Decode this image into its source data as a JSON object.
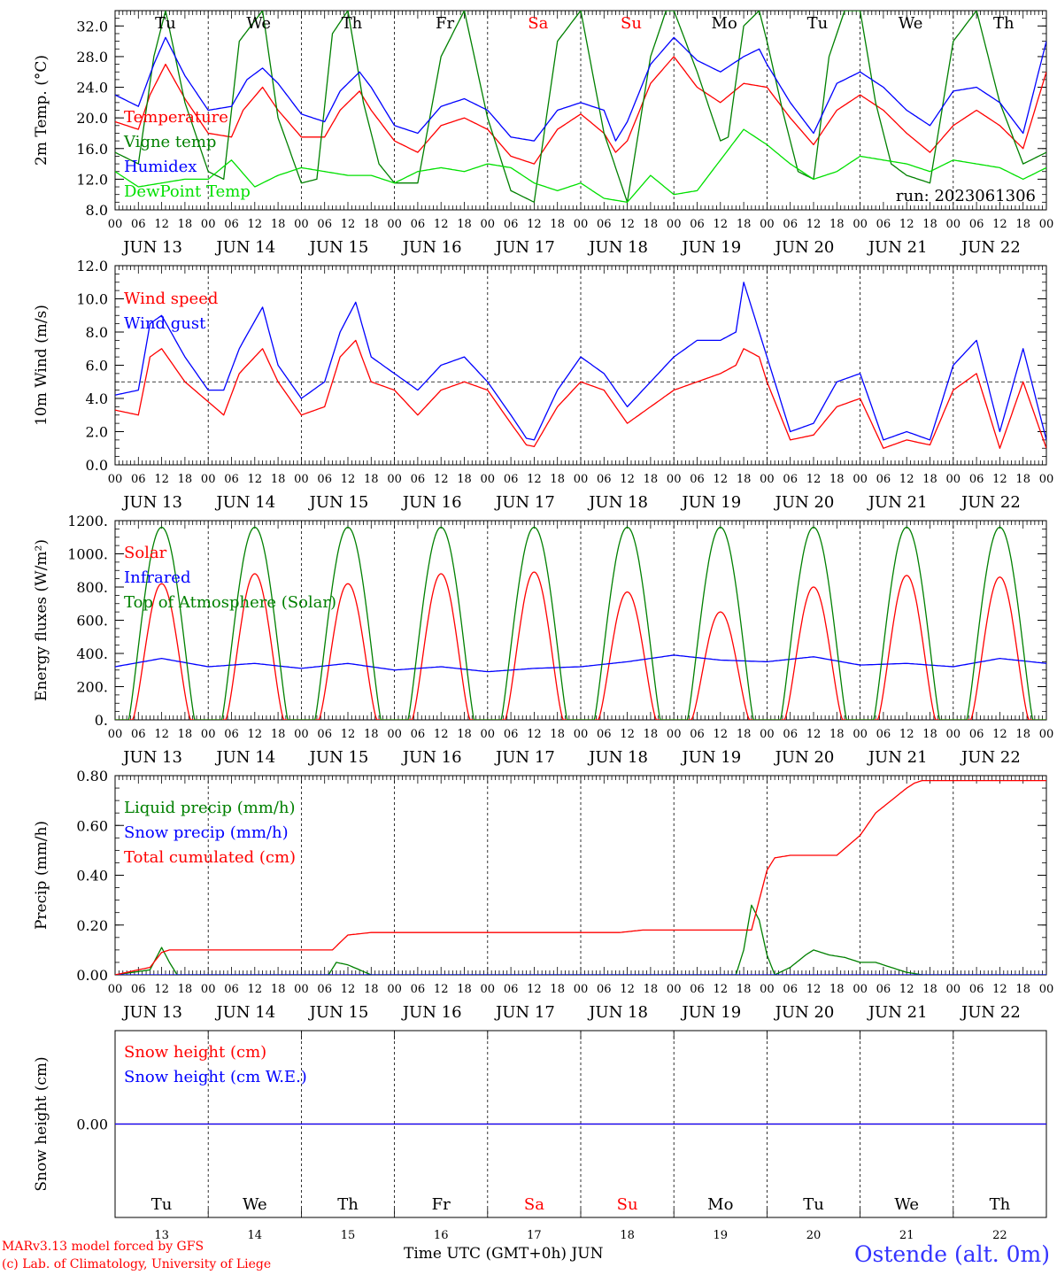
{
  "chart_data": [
    {
      "type": "line",
      "ylabel": "2m Temp. (°C)",
      "ylim": [
        8,
        34
      ],
      "yticks": [
        8.0,
        12.0,
        16.0,
        20.0,
        24.0,
        28.0,
        32.0
      ],
      "ytick_labels": [
        "8.0",
        "12.0",
        "16.0",
        "20.0",
        "24.0",
        "28.0",
        "32.0"
      ],
      "annotation": "run: 2023061306",
      "x_unit": "hours since 2023-06-13 00 UTC",
      "series": [
        {
          "name": "Temperature",
          "color": "#ff0000",
          "x": [
            0,
            6,
            9,
            13,
            18,
            24,
            30,
            33,
            38,
            42,
            48,
            54,
            58,
            63,
            66,
            72,
            78,
            84,
            90,
            96,
            102,
            108,
            114,
            120,
            126,
            129,
            132,
            138,
            144,
            150,
            156,
            162,
            168,
            174,
            180,
            186,
            192,
            198,
            204,
            210,
            216,
            222,
            228,
            234,
            240
          ],
          "y": [
            19.5,
            18.5,
            23.0,
            27.0,
            22.5,
            18.0,
            17.5,
            21.0,
            24.0,
            21.0,
            17.5,
            17.5,
            21.0,
            23.5,
            21.0,
            17.0,
            15.5,
            19.0,
            20.0,
            18.5,
            15.0,
            14.0,
            18.5,
            20.5,
            18.0,
            15.5,
            17.0,
            24.5,
            28.0,
            24.0,
            22.0,
            24.5,
            24.0,
            20.0,
            16.5,
            21.0,
            23.0,
            21.0,
            18.0,
            15.5,
            19.0,
            21.0,
            19.0,
            16.0,
            26.0
          ]
        },
        {
          "name": "Vigne temp",
          "color": "#008000",
          "x": [
            0,
            6,
            10,
            13,
            18,
            24,
            28,
            32,
            38,
            42,
            48,
            52,
            56,
            60,
            64,
            68,
            72,
            78,
            84,
            90,
            96,
            102,
            108,
            114,
            120,
            126,
            132,
            138,
            142,
            144,
            150,
            156,
            158,
            162,
            166,
            168,
            172,
            176,
            180,
            184,
            188,
            192,
            196,
            200,
            204,
            210,
            216,
            222,
            228,
            234,
            240
          ],
          "y": [
            15.5,
            14.0,
            28.0,
            34.0,
            22.0,
            13.0,
            12.0,
            30.0,
            34.0,
            20.0,
            11.5,
            12.0,
            31.0,
            34.0,
            22.0,
            14.0,
            11.5,
            11.5,
            28.0,
            34.0,
            20.0,
            10.5,
            9.0,
            30.0,
            34.0,
            18.0,
            9.0,
            28.0,
            34.0,
            34.0,
            26.0,
            17.0,
            17.5,
            32.0,
            34.0,
            30.0,
            21.0,
            13.0,
            12.0,
            28.0,
            34.0,
            34.0,
            22.0,
            14.0,
            12.5,
            11.5,
            30.0,
            34.0,
            22.0,
            14.0,
            15.5
          ]
        },
        {
          "name": "Humidex",
          "color": "#0000ff",
          "x": [
            0,
            6,
            10,
            13,
            18,
            24,
            30,
            34,
            38,
            42,
            48,
            54,
            58,
            63,
            66,
            72,
            78,
            84,
            90,
            96,
            102,
            108,
            114,
            120,
            126,
            129,
            132,
            138,
            144,
            150,
            156,
            162,
            166,
            168,
            174,
            180,
            186,
            192,
            198,
            204,
            210,
            216,
            222,
            228,
            234,
            240
          ],
          "y": [
            23.0,
            21.5,
            27.0,
            30.5,
            25.5,
            21.0,
            21.5,
            25.0,
            26.5,
            24.5,
            20.5,
            19.5,
            23.5,
            26.0,
            24.0,
            19.0,
            18.0,
            21.5,
            22.5,
            21.0,
            17.5,
            17.0,
            21.0,
            22.0,
            21.0,
            17.0,
            19.5,
            27.0,
            30.5,
            27.5,
            26.0,
            28.0,
            29.0,
            27.0,
            22.0,
            18.0,
            24.5,
            26.0,
            24.0,
            21.0,
            19.0,
            23.5,
            24.0,
            22.0,
            18.0,
            30.0
          ]
        },
        {
          "name": "DewPoint Temp",
          "color": "#00e000",
          "x": [
            0,
            6,
            12,
            18,
            24,
            30,
            36,
            42,
            48,
            54,
            60,
            66,
            72,
            78,
            84,
            90,
            96,
            102,
            108,
            114,
            120,
            126,
            132,
            138,
            144,
            150,
            156,
            162,
            168,
            174,
            180,
            186,
            192,
            198,
            204,
            210,
            216,
            222,
            228,
            234,
            240
          ],
          "y": [
            13.0,
            11.0,
            11.5,
            12.0,
            12.0,
            14.5,
            11.0,
            12.5,
            13.5,
            13.0,
            12.5,
            12.5,
            11.5,
            13.0,
            13.5,
            13.0,
            14.0,
            13.5,
            11.5,
            10.5,
            11.5,
            9.5,
            9.0,
            12.5,
            10.0,
            10.5,
            14.5,
            18.5,
            16.5,
            14.0,
            12.0,
            13.0,
            15.0,
            14.5,
            14.0,
            13.0,
            14.5,
            14.0,
            13.5,
            12.0,
            13.5
          ]
        }
      ]
    },
    {
      "type": "line",
      "ylabel": "10m Wind (m/s)",
      "ylim": [
        0,
        12
      ],
      "yticks": [
        0,
        2,
        4,
        6,
        8,
        10,
        12
      ],
      "ytick_labels": [
        "0.0",
        "2.0",
        "4.0",
        "6.0",
        "8.0",
        "10.0",
        "12.0"
      ],
      "reference_line": 5.0,
      "x_unit": "hours since 2023-06-13 00 UTC",
      "series": [
        {
          "name": "Wind speed",
          "color": "#ff0000",
          "x": [
            0,
            6,
            9,
            12,
            18,
            24,
            28,
            32,
            38,
            42,
            48,
            54,
            58,
            62,
            66,
            72,
            78,
            84,
            90,
            96,
            102,
            106,
            108,
            114,
            120,
            126,
            132,
            138,
            144,
            150,
            156,
            160,
            162,
            166,
            168,
            174,
            180,
            186,
            192,
            198,
            204,
            210,
            216,
            222,
            228,
            234,
            240
          ],
          "y": [
            3.3,
            3.0,
            6.5,
            7.0,
            5.0,
            3.8,
            3.0,
            5.5,
            7.0,
            5.0,
            3.0,
            3.5,
            6.5,
            7.5,
            5.0,
            4.5,
            3.0,
            4.5,
            5.0,
            4.5,
            2.5,
            1.2,
            1.1,
            3.5,
            5.0,
            4.5,
            2.5,
            3.5,
            4.5,
            5.0,
            5.5,
            6.0,
            7.0,
            6.5,
            5.0,
            1.5,
            1.8,
            3.5,
            4.0,
            1.0,
            1.5,
            1.2,
            4.5,
            5.5,
            1.0,
            5.0,
            1.0
          ]
        },
        {
          "name": "Wind gust",
          "color": "#0000ff",
          "x": [
            0,
            6,
            9,
            12,
            18,
            24,
            28,
            32,
            38,
            42,
            48,
            54,
            58,
            62,
            66,
            72,
            78,
            84,
            90,
            96,
            102,
            106,
            108,
            114,
            120,
            126,
            132,
            138,
            144,
            150,
            156,
            160,
            162,
            166,
            168,
            174,
            180,
            186,
            192,
            198,
            204,
            210,
            216,
            222,
            228,
            234,
            240
          ],
          "y": [
            4.2,
            4.5,
            8.5,
            9.0,
            6.5,
            4.5,
            4.5,
            7.0,
            9.5,
            6.0,
            4.0,
            5.0,
            8.0,
            9.8,
            6.5,
            5.5,
            4.5,
            6.0,
            6.5,
            5.0,
            3.0,
            1.6,
            1.5,
            4.5,
            6.5,
            5.5,
            3.5,
            5.0,
            6.5,
            7.5,
            7.5,
            8.0,
            11.0,
            8.0,
            6.5,
            2.0,
            2.5,
            5.0,
            5.5,
            1.5,
            2.0,
            1.5,
            6.0,
            7.5,
            2.0,
            7.0,
            1.5
          ]
        }
      ]
    },
    {
      "type": "line",
      "ylabel": "Energy fluxes (W/m²)",
      "ylim": [
        0,
        1200
      ],
      "yticks": [
        0,
        200,
        400,
        600,
        800,
        1000,
        1200
      ],
      "ytick_labels": [
        "0.",
        "200.",
        "400.",
        "600.",
        "800.",
        "1000.",
        "1200."
      ],
      "x_unit": "hours since 2023-06-13 00 UTC",
      "series": [
        {
          "name": "Solar",
          "color": "#ff0000",
          "daily_peak": [
            820,
            880,
            820,
            880,
            890,
            770,
            650,
            800,
            870,
            860
          ]
        },
        {
          "name": "Infrared",
          "color": "#0000ff",
          "x": [
            0,
            12,
            24,
            36,
            48,
            60,
            72,
            84,
            96,
            108,
            120,
            132,
            144,
            156,
            168,
            180,
            192,
            204,
            216,
            228,
            240
          ],
          "y": [
            320,
            370,
            320,
            340,
            310,
            340,
            300,
            320,
            290,
            310,
            320,
            350,
            390,
            360,
            350,
            380,
            330,
            340,
            320,
            370,
            340
          ]
        },
        {
          "name": "Top of Atmosphere (Solar)",
          "color": "#008000",
          "daily_peak": [
            1160,
            1160,
            1160,
            1160,
            1160,
            1160,
            1160,
            1160,
            1160,
            1160
          ]
        }
      ]
    },
    {
      "type": "line",
      "ylabel": "Precip (mm/h)",
      "ylim": [
        0,
        0.8
      ],
      "yticks": [
        0,
        0.2,
        0.4,
        0.6,
        0.8
      ],
      "ytick_labels": [
        "0.00",
        "0.20",
        "0.40",
        "0.60",
        "0.80"
      ],
      "x_unit": "hours since 2023-06-13 00 UTC",
      "series": [
        {
          "name": "Liquid precip (mm/h)",
          "color": "#008000",
          "x": [
            0,
            9,
            12,
            14,
            16,
            55,
            57,
            60,
            63,
            66,
            160,
            162,
            164,
            166,
            168,
            170,
            174,
            178,
            180,
            184,
            188,
            192,
            196,
            200,
            204,
            208
          ],
          "y": [
            0,
            0.02,
            0.11,
            0.05,
            0,
            0,
            0.05,
            0.04,
            0.02,
            0,
            0,
            0.1,
            0.28,
            0.22,
            0.08,
            0,
            0.03,
            0.08,
            0.1,
            0.08,
            0.07,
            0.05,
            0.05,
            0.03,
            0.01,
            0
          ]
        },
        {
          "name": "Snow precip (mm/h)",
          "color": "#0000ff",
          "x": [
            0,
            240
          ],
          "y": [
            0,
            0
          ]
        },
        {
          "name": "Total cumulated (cm)",
          "color": "#ff0000",
          "x": [
            0,
            9,
            12,
            14,
            56,
            60,
            66,
            130,
            136,
            164,
            166,
            168,
            170,
            174,
            180,
            186,
            192,
            196,
            200,
            204,
            206,
            208,
            240
          ],
          "y": [
            0,
            0.03,
            0.09,
            0.1,
            0.1,
            0.16,
            0.17,
            0.17,
            0.18,
            0.18,
            0.3,
            0.42,
            0.47,
            0.48,
            0.48,
            0.48,
            0.56,
            0.65,
            0.7,
            0.75,
            0.77,
            0.78,
            0.78
          ]
        }
      ]
    },
    {
      "type": "line",
      "ylabel": "Snow height (cm)",
      "ylim": [
        -1,
        1
      ],
      "yticks": [
        0
      ],
      "ytick_labels": [
        "0.00"
      ],
      "x_unit": "hours since 2023-06-13 00 UTC",
      "series": [
        {
          "name": "Snow height (cm)",
          "color": "#ff0000",
          "x": [
            0,
            240
          ],
          "y": [
            0,
            0
          ]
        },
        {
          "name": "Snow height (cm W.E.)",
          "color": "#0000ff",
          "x": [
            0,
            240
          ],
          "y": [
            0,
            0
          ]
        }
      ]
    }
  ],
  "x_axis": {
    "hour_labels": [
      "00",
      "06",
      "12",
      "18"
    ],
    "end_label": "00",
    "day_labels": [
      "JUN 13",
      "JUN 14",
      "JUN 15",
      "JUN 16",
      "JUN 17",
      "JUN 18",
      "JUN 19",
      "JUN 20",
      "JUN 21",
      "JUN 22"
    ],
    "weekdays": [
      "Tu",
      "We",
      "Th",
      "Fr",
      "Sa",
      "Su",
      "Mo",
      "Tu",
      "We",
      "Th"
    ],
    "weekday_colors": [
      "#000000",
      "#000000",
      "#000000",
      "#000000",
      "#ff0000",
      "#ff0000",
      "#000000",
      "#000000",
      "#000000",
      "#000000"
    ],
    "day_numbers": [
      "13",
      "14",
      "15",
      "16",
      "17",
      "18",
      "19",
      "20",
      "21",
      "22"
    ],
    "month": "JUN"
  },
  "footer": {
    "model": "MARv3.13 model forced by GFS",
    "lab": "(c) Lab. of Climatology, University of Liege",
    "time_label": "Time UTC (GMT+0h)",
    "station": "Ostende (alt. 0m)"
  }
}
